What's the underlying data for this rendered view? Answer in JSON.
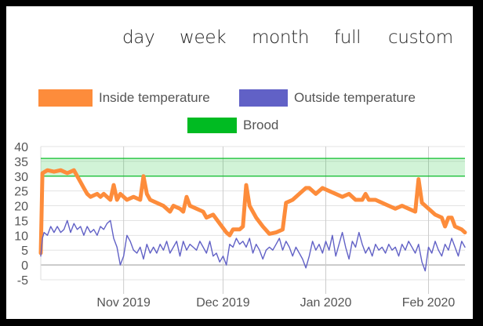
{
  "tabs": [
    "day",
    "week",
    "month",
    "full",
    "custom"
  ],
  "legend": [
    {
      "label": "Inside temperature",
      "color": "#fd8c3b"
    },
    {
      "label": "Outside temperature",
      "color": "#6161c6"
    },
    {
      "label": "Brood",
      "color": "#00bb22"
    }
  ],
  "chart_data": {
    "type": "line",
    "title": "",
    "xlabel": "",
    "ylabel": "",
    "ylim": [
      -5,
      40
    ],
    "yticks": [
      "40",
      "35",
      "30",
      "25",
      "20",
      "15",
      "10",
      "5",
      "0",
      "-5"
    ],
    "xlim": [
      "2019-10-07",
      "2020-02-12"
    ],
    "xticks": [
      {
        "date": "2019-11-01",
        "label": "Nov 2019"
      },
      {
        "date": "2019-12-01",
        "label": "Dec 2019"
      },
      {
        "date": "2020-01-01",
        "label": "Jan 2020"
      },
      {
        "date": "2020-02-01",
        "label": "Feb 2020"
      }
    ],
    "grid": true,
    "legend_position": "top",
    "band": {
      "name": "Brood",
      "from": 30,
      "to": 36,
      "color": "#00bb22"
    },
    "series": [
      {
        "name": "Inside temperature",
        "color": "#fd8c3b",
        "points": [
          [
            "2019-10-07",
            4
          ],
          [
            "2019-10-07.5",
            31
          ],
          [
            "2019-10-09",
            32
          ],
          [
            "2019-10-11",
            31.5
          ],
          [
            "2019-10-13",
            32
          ],
          [
            "2019-10-15",
            31
          ],
          [
            "2019-10-17",
            32
          ],
          [
            "2019-10-18",
            30
          ],
          [
            "2019-10-19",
            28
          ],
          [
            "2019-10-20",
            26
          ],
          [
            "2019-10-21",
            24
          ],
          [
            "2019-10-22",
            23
          ],
          [
            "2019-10-24",
            24
          ],
          [
            "2019-10-25",
            23
          ],
          [
            "2019-10-26",
            24
          ],
          [
            "2019-10-27",
            23
          ],
          [
            "2019-10-28",
            22
          ],
          [
            "2019-10-29",
            27
          ],
          [
            "2019-10-30",
            22
          ],
          [
            "2019-10-31",
            24
          ],
          [
            "2019-11-01",
            23
          ],
          [
            "2019-11-02",
            22
          ],
          [
            "2019-11-04",
            23
          ],
          [
            "2019-11-06",
            22
          ],
          [
            "2019-11-07",
            30
          ],
          [
            "2019-11-08",
            24
          ],
          [
            "2019-11-09",
            22
          ],
          [
            "2019-11-11",
            21
          ],
          [
            "2019-11-13",
            20
          ],
          [
            "2019-11-15",
            18
          ],
          [
            "2019-11-16",
            20
          ],
          [
            "2019-11-18",
            19
          ],
          [
            "2019-11-19",
            18
          ],
          [
            "2019-11-20",
            23
          ],
          [
            "2019-11-21",
            20
          ],
          [
            "2019-11-23",
            19
          ],
          [
            "2019-11-25",
            18
          ],
          [
            "2019-11-26",
            16
          ],
          [
            "2019-11-28",
            17
          ],
          [
            "2019-11-30",
            14
          ],
          [
            "2019-12-02",
            11
          ],
          [
            "2019-12-03",
            10
          ],
          [
            "2019-12-04",
            12
          ],
          [
            "2019-12-06",
            12
          ],
          [
            "2019-12-07",
            13
          ],
          [
            "2019-12-08",
            27
          ],
          [
            "2019-12-09",
            20
          ],
          [
            "2019-12-11",
            16
          ],
          [
            "2019-12-13",
            13
          ],
          [
            "2019-12-15",
            10.5
          ],
          [
            "2019-12-17",
            11
          ],
          [
            "2019-12-19",
            12
          ],
          [
            "2019-12-20",
            21
          ],
          [
            "2019-12-22",
            22
          ],
          [
            "2019-12-24",
            24
          ],
          [
            "2019-12-26",
            26
          ],
          [
            "2019-12-27",
            26
          ],
          [
            "2019-12-29",
            24
          ],
          [
            "2019-12-31",
            26
          ],
          [
            "2020-01-02",
            25
          ],
          [
            "2020-01-04",
            24
          ],
          [
            "2020-01-06",
            23
          ],
          [
            "2020-01-08",
            24
          ],
          [
            "2020-01-10",
            22
          ],
          [
            "2020-01-12",
            22
          ],
          [
            "2020-01-13",
            24
          ],
          [
            "2020-01-14",
            22
          ],
          [
            "2020-01-16",
            22
          ],
          [
            "2020-01-18",
            21
          ],
          [
            "2020-01-20",
            20
          ],
          [
            "2020-01-22",
            19
          ],
          [
            "2020-01-24",
            20
          ],
          [
            "2020-01-26",
            19
          ],
          [
            "2020-01-28",
            18
          ],
          [
            "2020-01-29",
            29
          ],
          [
            "2020-01-30",
            21
          ],
          [
            "2020-02-01",
            19
          ],
          [
            "2020-02-03",
            17
          ],
          [
            "2020-02-05",
            16
          ],
          [
            "2020-02-06",
            13
          ],
          [
            "2020-02-07",
            16
          ],
          [
            "2020-02-08",
            16
          ],
          [
            "2020-02-09",
            13
          ],
          [
            "2020-02-11",
            12
          ],
          [
            "2020-02-12",
            11
          ]
        ]
      },
      {
        "name": "Outside temperature",
        "color": "#6161c6",
        "points": [
          [
            "2019-10-07",
            3
          ],
          [
            "2019-10-07.5",
            9
          ],
          [
            "2019-10-08",
            11
          ],
          [
            "2019-10-09",
            10
          ],
          [
            "2019-10-10",
            13
          ],
          [
            "2019-10-11",
            11
          ],
          [
            "2019-10-12",
            13
          ],
          [
            "2019-10-13",
            11
          ],
          [
            "2019-10-14",
            12
          ],
          [
            "2019-10-15",
            15
          ],
          [
            "2019-10-16",
            11
          ],
          [
            "2019-10-17",
            14
          ],
          [
            "2019-10-18",
            12
          ],
          [
            "2019-10-19",
            13
          ],
          [
            "2019-10-20",
            10
          ],
          [
            "2019-10-21",
            13
          ],
          [
            "2019-10-22",
            11
          ],
          [
            "2019-10-23",
            12
          ],
          [
            "2019-10-24",
            10
          ],
          [
            "2019-10-25",
            13
          ],
          [
            "2019-10-26",
            12
          ],
          [
            "2019-10-27",
            14
          ],
          [
            "2019-10-28",
            15
          ],
          [
            "2019-10-29",
            9
          ],
          [
            "2019-10-30",
            6
          ],
          [
            "2019-10-31",
            0
          ],
          [
            "2019-11-01",
            3
          ],
          [
            "2019-11-02",
            10
          ],
          [
            "2019-11-03",
            8
          ],
          [
            "2019-11-04",
            5
          ],
          [
            "2019-11-05",
            4
          ],
          [
            "2019-11-06",
            6
          ],
          [
            "2019-11-07",
            2
          ],
          [
            "2019-11-08",
            7
          ],
          [
            "2019-11-09",
            4
          ],
          [
            "2019-11-10",
            6
          ],
          [
            "2019-11-11",
            4
          ],
          [
            "2019-11-12",
            7
          ],
          [
            "2019-11-13",
            5
          ],
          [
            "2019-11-14",
            8
          ],
          [
            "2019-11-15",
            4
          ],
          [
            "2019-11-16",
            6
          ],
          [
            "2019-11-17",
            8
          ],
          [
            "2019-11-18",
            3
          ],
          [
            "2019-11-19",
            8
          ],
          [
            "2019-11-20",
            5
          ],
          [
            "2019-11-21",
            7
          ],
          [
            "2019-11-22",
            6
          ],
          [
            "2019-11-23",
            5
          ],
          [
            "2019-11-24",
            8
          ],
          [
            "2019-11-25",
            6
          ],
          [
            "2019-11-26",
            4
          ],
          [
            "2019-11-27",
            8
          ],
          [
            "2019-11-28",
            3
          ],
          [
            "2019-11-29",
            4
          ],
          [
            "2019-11-30",
            1
          ],
          [
            "2019-12-01",
            3
          ],
          [
            "2019-12-02",
            0
          ],
          [
            "2019-12-03",
            7
          ],
          [
            "2019-12-04",
            6
          ],
          [
            "2019-12-05",
            9
          ],
          [
            "2019-12-06",
            7
          ],
          [
            "2019-12-07",
            8
          ],
          [
            "2019-12-08",
            6
          ],
          [
            "2019-12-09",
            9
          ],
          [
            "2019-12-10",
            4
          ],
          [
            "2019-12-11",
            7
          ],
          [
            "2019-12-12",
            5
          ],
          [
            "2019-12-13",
            2
          ],
          [
            "2019-12-14",
            5
          ],
          [
            "2019-12-15",
            6
          ],
          [
            "2019-12-16",
            5
          ],
          [
            "2019-12-17",
            7
          ],
          [
            "2019-12-18",
            9
          ],
          [
            "2019-12-19",
            5
          ],
          [
            "2019-12-20",
            8
          ],
          [
            "2019-12-21",
            6
          ],
          [
            "2019-12-22",
            3
          ],
          [
            "2019-12-23",
            6
          ],
          [
            "2019-12-24",
            4
          ],
          [
            "2019-12-25",
            2
          ],
          [
            "2019-12-26",
            -1
          ],
          [
            "2019-12-27",
            3
          ],
          [
            "2019-12-28",
            8
          ],
          [
            "2019-12-29",
            5
          ],
          [
            "2019-12-30",
            7
          ],
          [
            "2019-12-31",
            4
          ],
          [
            "2020-01-01",
            8
          ],
          [
            "2020-01-02",
            5
          ],
          [
            "2020-01-03",
            10
          ],
          [
            "2020-01-04",
            3
          ],
          [
            "2020-01-05",
            7
          ],
          [
            "2020-01-06",
            11
          ],
          [
            "2020-01-07",
            6
          ],
          [
            "2020-01-08",
            2
          ],
          [
            "2020-01-09",
            8
          ],
          [
            "2020-01-10",
            6
          ],
          [
            "2020-01-11",
            11
          ],
          [
            "2020-01-12",
            7
          ],
          [
            "2020-01-13",
            4
          ],
          [
            "2020-01-14",
            6
          ],
          [
            "2020-01-15",
            3
          ],
          [
            "2020-01-16",
            7
          ],
          [
            "2020-01-17",
            5
          ],
          [
            "2020-01-18",
            6
          ],
          [
            "2020-01-19",
            4
          ],
          [
            "2020-01-20",
            7
          ],
          [
            "2020-01-21",
            5
          ],
          [
            "2020-01-22",
            6
          ],
          [
            "2020-01-23",
            3
          ],
          [
            "2020-01-24",
            7
          ],
          [
            "2020-01-25",
            5
          ],
          [
            "2020-01-26",
            8
          ],
          [
            "2020-01-27",
            6
          ],
          [
            "2020-01-28",
            4
          ],
          [
            "2020-01-29",
            7
          ],
          [
            "2020-01-30",
            1
          ],
          [
            "2020-01-31",
            -2
          ],
          [
            "2020-02-01",
            6
          ],
          [
            "2020-02-02",
            4
          ],
          [
            "2020-02-03",
            8
          ],
          [
            "2020-02-04",
            5
          ],
          [
            "2020-02-05",
            3
          ],
          [
            "2020-02-06",
            7
          ],
          [
            "2020-02-07",
            5
          ],
          [
            "2020-02-08",
            9
          ],
          [
            "2020-02-09",
            6
          ],
          [
            "2020-02-10",
            3
          ],
          [
            "2020-02-11",
            8
          ],
          [
            "2020-02-12",
            6
          ]
        ]
      }
    ]
  }
}
